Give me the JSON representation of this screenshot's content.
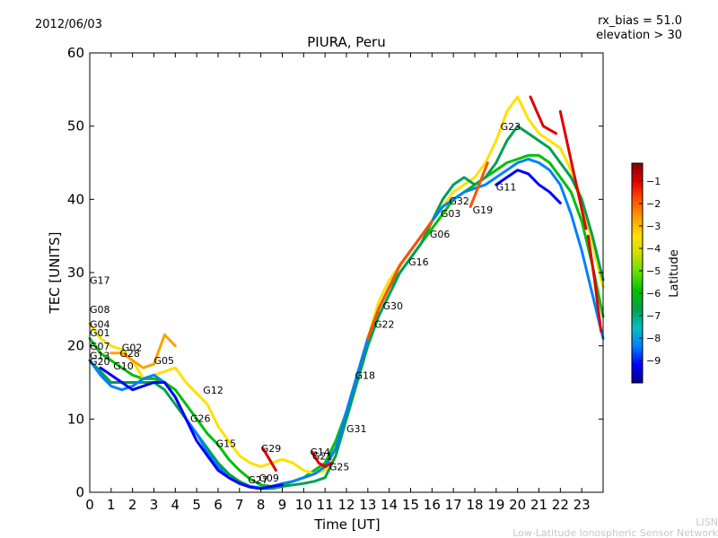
{
  "date": "2012/06/03",
  "rx_bias_text": "rx_bias = 51.0",
  "elevation_text": "elevation > 30",
  "watermark": {
    "line1": "LISN",
    "line2": "Low-Latitude Ionospheric Sensor Network"
  },
  "chart_data": {
    "type": "line",
    "title": "PIURA, Peru",
    "xlabel": "Time [UT]",
    "ylabel": "TEC [UNITS]",
    "xlim": [
      0,
      24
    ],
    "ylim": [
      0,
      60
    ],
    "xticks": [
      0,
      1,
      2,
      3,
      4,
      5,
      6,
      7,
      8,
      9,
      10,
      11,
      12,
      13,
      14,
      15,
      16,
      17,
      18,
      19,
      20,
      21,
      22,
      23
    ],
    "yticks": [
      0,
      10,
      20,
      30,
      40,
      50,
      60
    ],
    "grid": false,
    "colorbar": {
      "label": "Latitude",
      "range": [
        -10,
        -0.2
      ],
      "ticks": [
        -9,
        -8,
        -7,
        -6,
        -5,
        -4,
        -3,
        -2,
        -1
      ],
      "tick_labels": [
        "−9",
        "−8",
        "−7",
        "−6",
        "−5",
        "−4",
        "−3",
        "−2",
        "−1"
      ],
      "colormap": [
        "#00008f",
        "#0000ff",
        "#0080ff",
        "#00c0c0",
        "#00a050",
        "#00c000",
        "#60e000",
        "#c8e000",
        "#ffe000",
        "#ffa000",
        "#ff5000",
        "#e00000",
        "#800000"
      ]
    },
    "series": [
      {
        "name": "S1",
        "color": "#00c000",
        "x": [
          0,
          0.5,
          1,
          1.5,
          2,
          2.5,
          3,
          3.5,
          4,
          4.5,
          5,
          5.5,
          6,
          6.5,
          7,
          7.5,
          8,
          8.5,
          9,
          9.5,
          10,
          10.5,
          11,
          11.5,
          12,
          12.5,
          13,
          13.5,
          14,
          14.5,
          15,
          15.5,
          16,
          16.5,
          17,
          17.5,
          18,
          18.5,
          19,
          19.5,
          20,
          20.5,
          21,
          21.5,
          22,
          22.5,
          23,
          23.5,
          24
        ],
        "y": [
          21,
          19,
          18,
          17,
          16,
          15.5,
          15.5,
          15,
          14,
          12,
          10,
          8,
          6.5,
          4.5,
          3,
          1.8,
          1,
          0.8,
          1,
          1.5,
          2,
          3,
          4,
          7,
          11,
          16,
          21,
          25,
          28,
          30,
          32,
          34,
          36,
          38,
          40,
          41,
          42,
          43,
          44,
          45,
          45.5,
          46,
          46,
          45,
          43,
          41,
          37,
          31,
          24
        ]
      },
      {
        "name": "S2",
        "color": "#ffe000",
        "x": [
          0,
          0.5,
          1,
          1.5,
          2,
          2.5,
          3,
          3.5,
          4,
          4.5,
          5,
          5.5,
          6,
          6.5,
          7,
          7.5,
          8,
          8.5,
          9,
          9.5,
          10,
          10.5,
          11,
          11.5,
          12,
          12.5,
          13,
          13.5,
          14,
          14.5,
          15,
          15.5,
          16,
          16.5,
          17,
          17.5,
          18,
          18.5,
          19,
          19.5,
          20,
          20.5,
          21,
          21.5,
          22,
          22.5,
          23,
          23.5,
          24
        ],
        "y": [
          23,
          21,
          20,
          19.5,
          18,
          15.5,
          16,
          16.5,
          17,
          15,
          13.5,
          12,
          9,
          7,
          5,
          4,
          3.5,
          4,
          4.5,
          4,
          3,
          2.5,
          3,
          6,
          11,
          16,
          21,
          26,
          29,
          31,
          33,
          35,
          37,
          39,
          41,
          42,
          43,
          45,
          48,
          52,
          54,
          51,
          49,
          48,
          47,
          44,
          40,
          34,
          28
        ]
      },
      {
        "name": "S3",
        "color": "#00a050",
        "x": [
          0,
          0.5,
          1,
          1.5,
          2,
          2.5,
          3,
          3.5,
          4,
          4.5,
          5,
          5.5,
          6,
          6.5,
          7,
          7.5,
          8,
          8.5,
          9,
          9.5,
          10,
          10.5,
          11,
          11.5,
          12,
          12.5,
          13,
          13.5,
          14,
          14.5,
          15,
          15.5,
          16,
          16.5,
          17,
          17.5,
          18,
          18.5,
          19,
          19.5,
          20,
          20.5,
          21,
          21.5,
          22,
          22.5,
          23,
          23.5,
          24
        ],
        "y": [
          18,
          16.5,
          15,
          15,
          15,
          15,
          15,
          14,
          12,
          10,
          8,
          6,
          4,
          2.5,
          1.5,
          0.8,
          0.5,
          0.5,
          0.8,
          1,
          1.2,
          1.5,
          2,
          5,
          10,
          15,
          20,
          24,
          27,
          30,
          32,
          34,
          37,
          40,
          42,
          43,
          42,
          43,
          45,
          48,
          50,
          49,
          48,
          47,
          45,
          43,
          40,
          35,
          29
        ]
      },
      {
        "name": "S4",
        "color": "#0080ff",
        "x": [
          0,
          0.5,
          1,
          1.5,
          2,
          2.5,
          3,
          3.5,
          4,
          4.5,
          5,
          5.5,
          6,
          6.5,
          7,
          7.5,
          8,
          8.5,
          9,
          9.5,
          10,
          10.5,
          11,
          11.5,
          12,
          12.5,
          13,
          13.5,
          14,
          14.5,
          15,
          15.5,
          16,
          16.5,
          17,
          17.5,
          18,
          18.5,
          19,
          19.5,
          20,
          20.5,
          21,
          21.5,
          22,
          22.5,
          23,
          23.5,
          24
        ],
        "y": [
          18,
          16,
          14.5,
          14,
          14.5,
          15.5,
          16,
          15,
          13,
          10,
          8,
          5.5,
          3.5,
          2,
          1.2,
          0.8,
          0.6,
          0.8,
          1.2,
          1.5,
          2,
          2.5,
          3.5,
          6,
          11,
          16,
          21,
          25,
          28,
          31,
          33,
          35,
          37,
          39,
          40,
          41,
          41.5,
          42,
          43,
          44,
          45,
          45.5,
          45,
          44,
          42,
          38,
          33,
          27,
          21
        ]
      },
      {
        "name": "S5",
        "color": "#0000ff",
        "x": [
          0.5,
          1,
          1.5,
          2,
          2.5,
          3,
          3.5,
          4,
          4.5,
          5,
          5.5,
          6,
          6.5,
          7,
          7.5,
          8,
          8.5,
          9
        ],
        "y": [
          17,
          16,
          15,
          14,
          14.5,
          15,
          15,
          13,
          10,
          7,
          5,
          3,
          2,
          1.2,
          0.7,
          0.5,
          0.8,
          1
        ]
      },
      {
        "name": "S6",
        "color": "#0000ff",
        "x": [
          19,
          19.5,
          20,
          20.5,
          21,
          21.5,
          22
        ],
        "y": [
          42,
          43,
          44,
          43.5,
          42,
          41,
          39.5
        ]
      },
      {
        "name": "S7",
        "color": "#ffa000",
        "x": [
          1,
          1.5,
          2,
          2.5,
          3,
          3.5,
          4
        ],
        "y": [
          19,
          19,
          18,
          17,
          17.5,
          21.5,
          20
        ]
      },
      {
        "name": "S8",
        "color": "#ff5000",
        "x": [
          13,
          13.5,
          14,
          14.5,
          15,
          15.5,
          16
        ],
        "y": [
          21,
          25,
          28,
          31,
          33,
          35,
          37
        ]
      },
      {
        "name": "S9",
        "color": "#e00000",
        "x": [
          20.6,
          20.9,
          21.2,
          21.5,
          21.8
        ],
        "y": [
          54,
          52,
          50,
          49.5,
          49
        ]
      },
      {
        "name": "S10",
        "color": "#e00000",
        "x": [
          22,
          22.3,
          22.6,
          22.9,
          23.2
        ],
        "y": [
          52,
          48,
          44,
          40,
          36
        ]
      },
      {
        "name": "S11",
        "color": "#e00000",
        "x": [
          8.1,
          8.4,
          8.7
        ],
        "y": [
          6,
          4.5,
          3
        ]
      },
      {
        "name": "S12",
        "color": "#e00000",
        "x": [
          10.4,
          10.7,
          11,
          11.3
        ],
        "y": [
          5.5,
          4,
          3.5,
          4
        ]
      },
      {
        "name": "S13",
        "color": "#ff5000",
        "x": [
          17.8,
          18.2,
          18.6
        ],
        "y": [
          39,
          42,
          45
        ]
      },
      {
        "name": "S14",
        "color": "#e00000",
        "x": [
          23.3,
          23.6,
          23.9
        ],
        "y": [
          35,
          29,
          22
        ]
      }
    ],
    "sat_labels": [
      {
        "label": "G17",
        "x": 0,
        "y": 28.5
      },
      {
        "label": "G08",
        "x": 0,
        "y": 24.5
      },
      {
        "label": "G04",
        "x": 0,
        "y": 22.5
      },
      {
        "label": "G01",
        "x": 0,
        "y": 21.3
      },
      {
        "label": "G07",
        "x": 0,
        "y": 19.5
      },
      {
        "label": "G02",
        "x": 1.5,
        "y": 19.3
      },
      {
        "label": "G28",
        "x": 1.4,
        "y": 18.5
      },
      {
        "label": "G13",
        "x": 0,
        "y": 18.2
      },
      {
        "label": "G20",
        "x": 0,
        "y": 17.4
      },
      {
        "label": "G10",
        "x": 1.1,
        "y": 16.8
      },
      {
        "label": "G05",
        "x": 3,
        "y": 17.5
      },
      {
        "label": "G12",
        "x": 5.3,
        "y": 13.5
      },
      {
        "label": "G26",
        "x": 4.7,
        "y": 9.6
      },
      {
        "label": "G15",
        "x": 5.9,
        "y": 6.2
      },
      {
        "label": "G29",
        "x": 8,
        "y": 5.5
      },
      {
        "label": "G14",
        "x": 10.3,
        "y": 5
      },
      {
        "label": "G21",
        "x": 10.4,
        "y": 4.5
      },
      {
        "label": "G25",
        "x": 11.2,
        "y": 3
      },
      {
        "label": "G09",
        "x": 7.9,
        "y": 1.5
      },
      {
        "label": "G27",
        "x": 7.4,
        "y": 1.2
      },
      {
        "label": "G31",
        "x": 12,
        "y": 8.2
      },
      {
        "label": "G18",
        "x": 12.4,
        "y": 15.5
      },
      {
        "label": "G22",
        "x": 13.3,
        "y": 22.5
      },
      {
        "label": "G30",
        "x": 13.7,
        "y": 25
      },
      {
        "label": "G16",
        "x": 14.9,
        "y": 31
      },
      {
        "label": "G06",
        "x": 15.9,
        "y": 34.8
      },
      {
        "label": "G03",
        "x": 16.4,
        "y": 37.6
      },
      {
        "label": "G32",
        "x": 16.8,
        "y": 39.3
      },
      {
        "label": "G19",
        "x": 17.9,
        "y": 38.1
      },
      {
        "label": "G11",
        "x": 19,
        "y": 41.2
      },
      {
        "label": "G23",
        "x": 19.2,
        "y": 49.5
      }
    ]
  }
}
